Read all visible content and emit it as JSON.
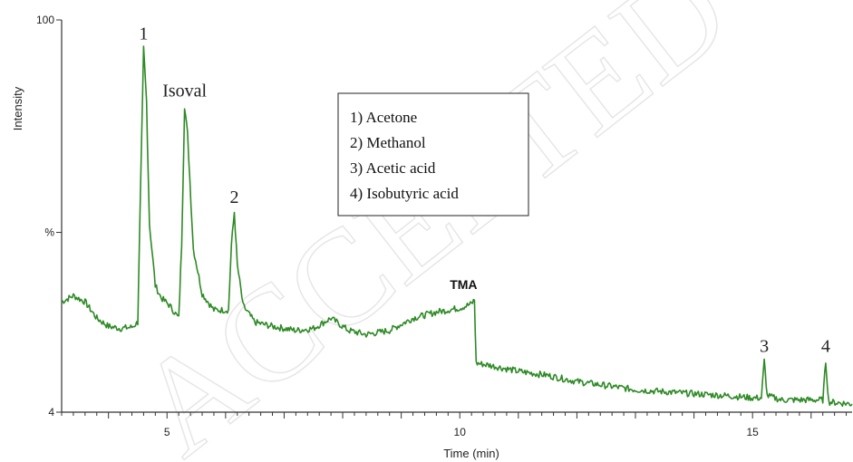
{
  "chart_data": {
    "type": "line",
    "xlabel": "Time (min)",
    "ylabel": "Intensity",
    "xlim": [
      3.2,
      16.7
    ],
    "ylim": [
      4,
      100
    ],
    "x_ticks": [
      5,
      10,
      15
    ],
    "y_tick_labels": [
      {
        "value": 100,
        "label": "100"
      },
      {
        "value": 48,
        "label": "%"
      },
      {
        "value": 4,
        "label": "4"
      }
    ],
    "grid": false,
    "color": "#2d8a24",
    "series": [
      {
        "points": [
          [
            3.2,
            31
          ],
          [
            3.4,
            32.5
          ],
          [
            3.6,
            31
          ],
          [
            3.8,
            27
          ],
          [
            4.0,
            25
          ],
          [
            4.2,
            24.5
          ],
          [
            4.4,
            24.8
          ],
          [
            4.5,
            26
          ],
          [
            4.55,
            60
          ],
          [
            4.6,
            93
          ],
          [
            4.65,
            80
          ],
          [
            4.7,
            50
          ],
          [
            4.8,
            35
          ],
          [
            4.9,
            32
          ],
          [
            5.05,
            30
          ],
          [
            5.2,
            27
          ],
          [
            5.25,
            45
          ],
          [
            5.3,
            79
          ],
          [
            5.35,
            72
          ],
          [
            5.45,
            44
          ],
          [
            5.6,
            33
          ],
          [
            5.8,
            29
          ],
          [
            6.05,
            29
          ],
          [
            6.1,
            45
          ],
          [
            6.15,
            53
          ],
          [
            6.2,
            40
          ],
          [
            6.3,
            30
          ],
          [
            6.5,
            26
          ],
          [
            6.8,
            25
          ],
          [
            7.2,
            24
          ],
          [
            7.5,
            24.5
          ],
          [
            7.8,
            27
          ],
          [
            8.1,
            24
          ],
          [
            8.4,
            23
          ],
          [
            8.8,
            24
          ],
          [
            9.2,
            27
          ],
          [
            9.6,
            28.5
          ],
          [
            10.0,
            29.5
          ],
          [
            10.2,
            30.5
          ],
          [
            10.25,
            31.5
          ],
          [
            10.28,
            16
          ],
          [
            10.5,
            15.5
          ],
          [
            11.0,
            14
          ],
          [
            11.5,
            13
          ],
          [
            12.0,
            11.5
          ],
          [
            12.5,
            10.5
          ],
          [
            13.0,
            9.5
          ],
          [
            13.5,
            9
          ],
          [
            14.0,
            8.5
          ],
          [
            14.6,
            8
          ],
          [
            15.0,
            7.5
          ],
          [
            15.15,
            7.5
          ],
          [
            15.2,
            16.5
          ],
          [
            15.25,
            8
          ],
          [
            15.5,
            7
          ],
          [
            16.0,
            7
          ],
          [
            16.2,
            7
          ],
          [
            16.25,
            16.5
          ],
          [
            16.3,
            6.5
          ],
          [
            16.7,
            6
          ]
        ]
      }
    ],
    "annotations": [
      {
        "text": "1",
        "x": 4.6,
        "y": 93
      },
      {
        "text": "Isoval",
        "x": 5.3,
        "y": 79
      },
      {
        "text": "2",
        "x": 6.15,
        "y": 53
      },
      {
        "text": "TMA",
        "x": 10.25,
        "y": 31.5
      },
      {
        "text": "3",
        "x": 15.2,
        "y": 16.5
      },
      {
        "text": "4",
        "x": 16.25,
        "y": 16.5
      }
    ],
    "legend": {
      "position": "top-center",
      "entries": [
        "1) Acetone",
        "2) Methanol",
        "3) Acetic acid",
        "4) Isobutyric acid"
      ]
    }
  },
  "watermark": "ACCEPTED"
}
